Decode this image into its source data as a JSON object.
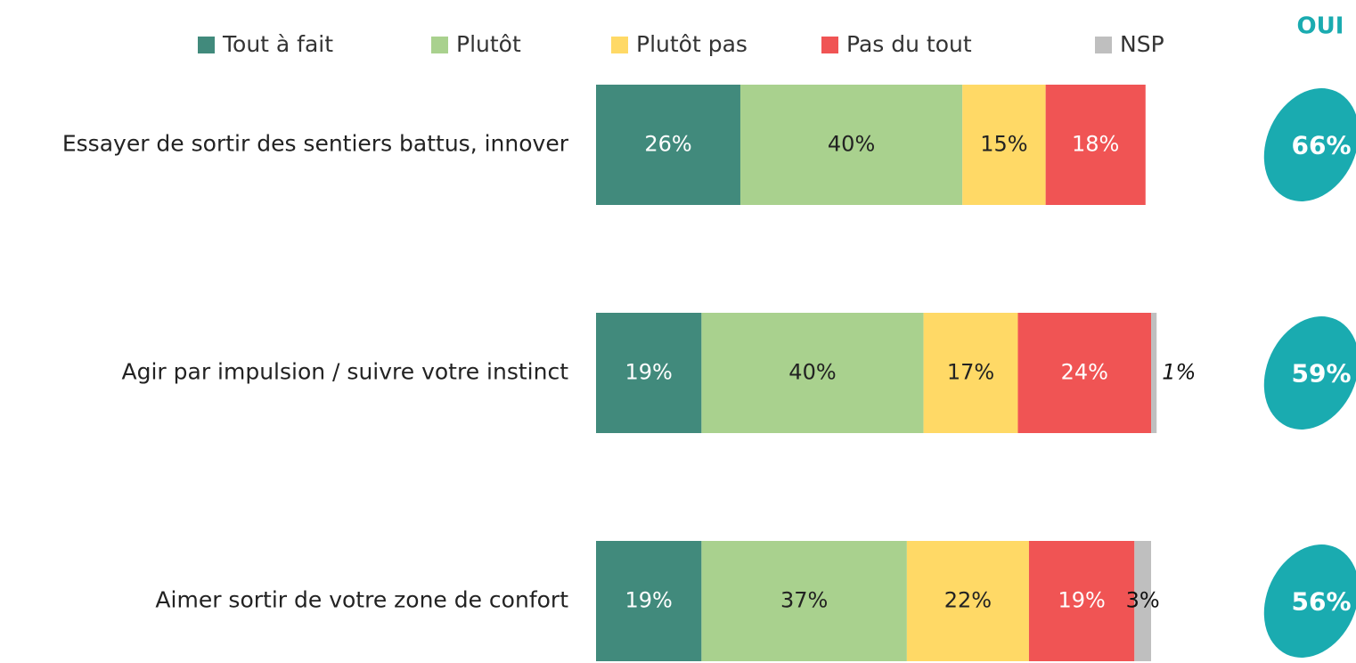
{
  "chart_data": {
    "type": "stacked-bar-horizontal",
    "categories": [
      "Essayer de sortir des sentiers battus, innover",
      "Agir par impulsion / suivre votre instinct",
      "Aimer sortir de votre zone de confort"
    ],
    "xlim": [
      0,
      100
    ],
    "legend": "top",
    "series": [
      {
        "name": "Tout à fait",
        "color": "#418a7c",
        "values": [
          26,
          19,
          19
        ],
        "value_labels": [
          "26%",
          "19%",
          "19%"
        ]
      },
      {
        "name": "Plutôt",
        "color": "#a9d18e",
        "values": [
          40,
          40,
          37
        ],
        "value_labels": [
          "40%",
          "40%",
          "37%"
        ]
      },
      {
        "name": "Plutôt pas",
        "color": "#ffd966",
        "values": [
          15,
          17,
          22
        ],
        "value_labels": [
          "15%",
          "17%",
          "22%"
        ]
      },
      {
        "name": "Pas du tout",
        "color": "#f05454",
        "values": [
          18,
          24,
          19
        ],
        "value_labels": [
          "18%",
          "24%",
          "19%"
        ]
      },
      {
        "name": "NSP",
        "color": "#bfbfbf",
        "values": [
          null,
          1,
          3
        ],
        "value_labels": [
          null,
          "1%",
          "3%"
        ]
      }
    ],
    "total": {
      "title": "OUI",
      "color": "#1aabb0",
      "values": [
        66,
        59,
        56
      ],
      "value_labels": [
        "66%",
        "59%",
        "56%"
      ]
    }
  }
}
